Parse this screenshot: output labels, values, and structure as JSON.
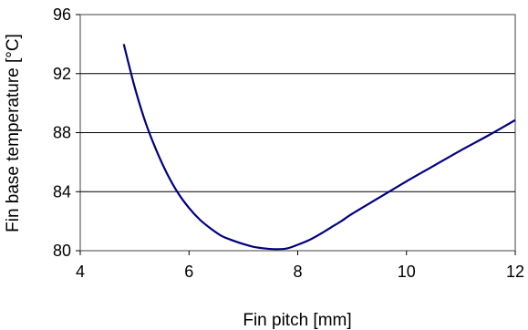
{
  "chart_data": {
    "type": "line",
    "title": "",
    "xlabel": "Fin pitch [mm]",
    "ylabel": "Fin base temperature [°C]",
    "xlim": [
      4,
      12
    ],
    "ylim": [
      80,
      96
    ],
    "xticks": [
      4,
      6,
      8,
      10,
      12
    ],
    "yticks": [
      80,
      84,
      88,
      92,
      96
    ],
    "grid": "horizontal",
    "line_color": "#000080",
    "series": [
      {
        "x": [
          4.8,
          5.0,
          5.2,
          5.4,
          5.6,
          5.8,
          6.0,
          6.2,
          6.4,
          6.6,
          6.8,
          7.0,
          7.2,
          7.4,
          7.6,
          7.8,
          8.0,
          8.2,
          8.4,
          8.6,
          8.8,
          9.0,
          9.5,
          10.0,
          10.5,
          11.0,
          11.5,
          12.0
        ],
        "y": [
          94.0,
          91.1,
          88.7,
          86.8,
          85.2,
          83.9,
          82.9,
          82.1,
          81.5,
          81.0,
          80.7,
          80.45,
          80.25,
          80.15,
          80.1,
          80.15,
          80.4,
          80.7,
          81.1,
          81.55,
          82.0,
          82.5,
          83.6,
          84.7,
          85.75,
          86.8,
          87.8,
          88.85
        ]
      }
    ]
  }
}
